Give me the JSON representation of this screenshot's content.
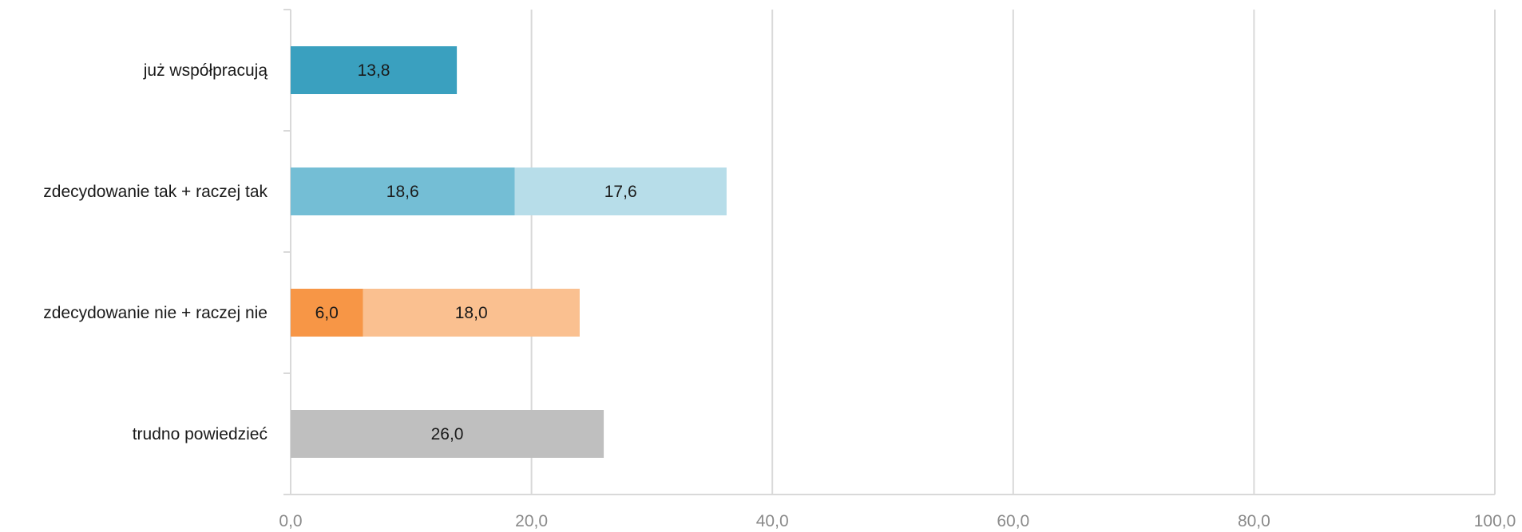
{
  "chart_data": {
    "type": "bar",
    "orientation": "horizontal",
    "stacked": true,
    "title": "",
    "xlabel": "",
    "ylabel": "",
    "xlim": [
      0,
      100
    ],
    "x_ticks": [
      "0,0",
      "20,0",
      "40,0",
      "60,0",
      "80,0",
      "100,0"
    ],
    "x_tick_values": [
      0,
      20,
      40,
      60,
      80,
      100
    ],
    "grid": "vertical",
    "legend": "none",
    "categories": [
      "już współpracują",
      "zdecydowanie tak + raczej tak",
      "zdecydowanie nie + raczej nie",
      "trudno powiedzieć"
    ],
    "segments": [
      [
        {
          "value": 13.8,
          "label": "13,8",
          "color": "#3aa0bf"
        }
      ],
      [
        {
          "value": 18.6,
          "label": "18,6",
          "color": "#74bed5"
        },
        {
          "value": 17.6,
          "label": "17,6",
          "color": "#b7dde9"
        }
      ],
      [
        {
          "value": 6.0,
          "label": "6,0",
          "color": "#f79646"
        },
        {
          "value": 18.0,
          "label": "18,0",
          "color": "#fac090"
        }
      ],
      [
        {
          "value": 26.0,
          "label": "26,0",
          "color": "#bfbfbf"
        }
      ]
    ]
  }
}
